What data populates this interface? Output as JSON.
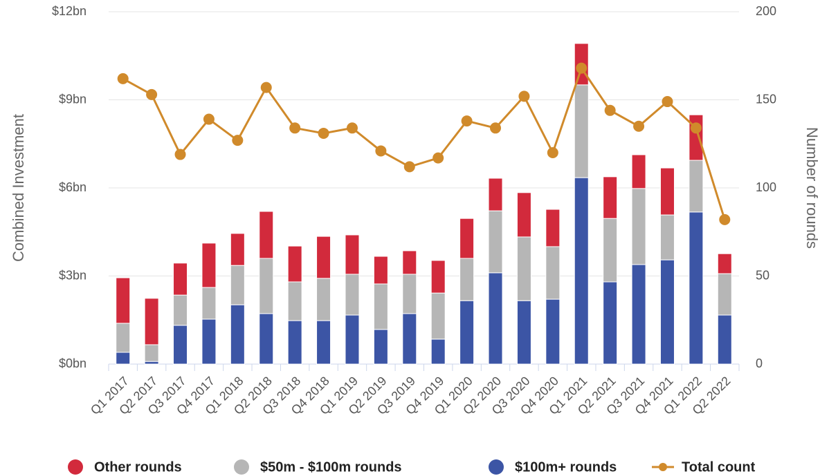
{
  "chart_data": {
    "type": "bar",
    "stacked": true,
    "ylabel": "Combined Investment",
    "y2label": "Number of rounds",
    "categories": [
      "Q1 2017",
      "Q2 2017",
      "Q3 2017",
      "Q4 2017",
      "Q1 2018",
      "Q2 2018",
      "Q3 2018",
      "Q4 2018",
      "Q1 2019",
      "Q2 2019",
      "Q3 2019",
      "Q4 2019",
      "Q1 2020",
      "Q2 2020",
      "Q3 2020",
      "Q4 2020",
      "Q1 2021",
      "Q2 2021",
      "Q3 2021",
      "Q4 2021",
      "Q1 2022",
      "Q2 2022"
    ],
    "series": [
      {
        "name": "Other rounds",
        "color": "#d22a3c",
        "values": [
          1.55,
          1.58,
          1.09,
          1.51,
          1.09,
          1.6,
          1.22,
          1.43,
          1.34,
          0.94,
          0.8,
          1.11,
          1.36,
          1.11,
          1.51,
          1.27,
          1.41,
          1.42,
          1.15,
          1.6,
          1.55,
          0.68
        ]
      },
      {
        "name": "$50m - $100m rounds",
        "color": "#b6b6b6",
        "values": [
          0.99,
          0.57,
          1.03,
          1.08,
          1.34,
          1.88,
          1.32,
          1.44,
          1.39,
          1.55,
          1.34,
          1.57,
          1.44,
          2.11,
          2.17,
          1.79,
          3.16,
          2.16,
          2.59,
          1.53,
          1.76,
          1.41
        ]
      },
      {
        "name": "$100m+ rounds",
        "color": "#3c55a5",
        "values": [
          0.4,
          0.09,
          1.32,
          1.53,
          2.02,
          1.72,
          1.48,
          1.48,
          1.67,
          1.18,
          1.72,
          0.85,
          2.16,
          3.11,
          2.16,
          2.21,
          6.35,
          2.8,
          3.39,
          3.55,
          5.18,
          1.67
        ]
      },
      {
        "name": "Total count",
        "color": "#d08a2b",
        "type": "line",
        "axis": "y2",
        "values": [
          162,
          153,
          119,
          139,
          127,
          157,
          134,
          131,
          134,
          121,
          112,
          117,
          138,
          134,
          152,
          120,
          168,
          144,
          135,
          149,
          134,
          82
        ]
      }
    ],
    "ylim": [
      0,
      12
    ],
    "yticks": [
      {
        "value": 0,
        "label": "$0bn"
      },
      {
        "value": 3,
        "label": "$3bn"
      },
      {
        "value": 6,
        "label": "$6bn"
      },
      {
        "value": 9,
        "label": "$9bn"
      },
      {
        "value": 12,
        "label": "$12bn"
      }
    ],
    "y2lim": [
      0,
      200
    ],
    "y2ticks": [
      0,
      50,
      100,
      150,
      200
    ],
    "grid": true,
    "legend": "bottom"
  }
}
